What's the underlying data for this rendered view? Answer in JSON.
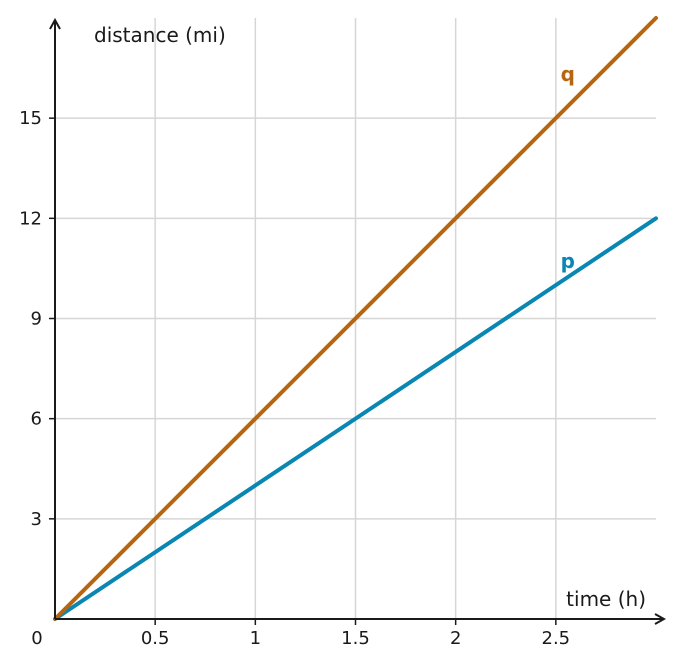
{
  "chart_data": {
    "type": "line",
    "title": "",
    "xlabel": "time (h)",
    "ylabel": "distance (mi)",
    "xlim": [
      0,
      3
    ],
    "ylim": [
      0,
      18
    ],
    "x_ticks": [
      0.5,
      1,
      1.5,
      2,
      2.5
    ],
    "x_tick_labels": [
      "0.5",
      "1",
      "1.5",
      "2",
      "2.5"
    ],
    "y_ticks": [
      3,
      6,
      9,
      12,
      15
    ],
    "y_tick_labels": [
      "3",
      "6",
      "9",
      "12",
      "15"
    ],
    "origin_label": "0",
    "grid": true,
    "series": [
      {
        "name": "p",
        "color": "#0a86b3",
        "x": [
          0,
          3
        ],
        "y": [
          0,
          12
        ]
      },
      {
        "name": "q",
        "color": "#b8650f",
        "x": [
          0,
          3
        ],
        "y": [
          0,
          18
        ]
      }
    ]
  }
}
